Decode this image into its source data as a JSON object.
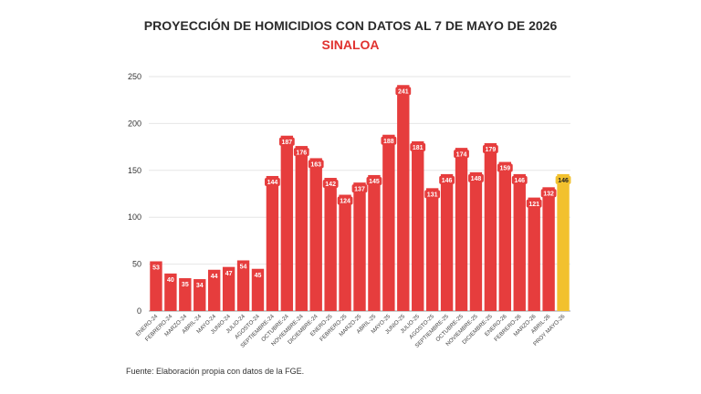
{
  "chart_data": {
    "type": "bar",
    "title": "PROYECCIÓN DE HOMICIDIOS CON DATOS AL 7 DE MAYO DE 2026",
    "subtitle": "SINALOA",
    "categories": [
      "ENERO-24",
      "FEBRERO-24",
      "MARZO-24",
      "ABRIL-24",
      "MAYO-24",
      "JUNIO-24",
      "JULIO-24",
      "AGOSTO-24",
      "SEPTIEMBRE-24",
      "OCTUBRE-24",
      "NOVIEMBRE-24",
      "DICIEMBRE-24",
      "ENERO-25",
      "FEBRERO-25",
      "MARZO-25",
      "ABRIL-25",
      "MAYO-25",
      "JUNIO-25",
      "JULIO-25",
      "AGOSTO-25",
      "SEPTIEMBRE-25",
      "OCTUBRE-25",
      "NOVIEMBRE-25",
      "DICIEMBRE-25",
      "ENERO-26",
      "FEBRERO-26",
      "MARZO-26",
      "ABRIL-26",
      "PROY MAYO-26"
    ],
    "values": [
      53,
      40,
      35,
      34,
      44,
      47,
      54,
      45,
      144,
      187,
      176,
      163,
      142,
      124,
      137,
      145,
      188,
      241,
      181,
      131,
      146,
      174,
      148,
      179,
      159,
      146,
      121,
      132,
      146
    ],
    "ylim": [
      0,
      250
    ],
    "yticks": [
      0,
      50,
      100,
      150,
      200,
      250
    ],
    "grid": true,
    "xlabel": "",
    "ylabel": "",
    "colors": {
      "bar": "#e63d3d",
      "highlight": "#f2c12e",
      "title": "#2b2b2b",
      "subtitle": "#e0312e"
    },
    "highlight_index": 28
  },
  "footer": {
    "source": "Fuente: Elaboración propia con datos de la FGE."
  }
}
